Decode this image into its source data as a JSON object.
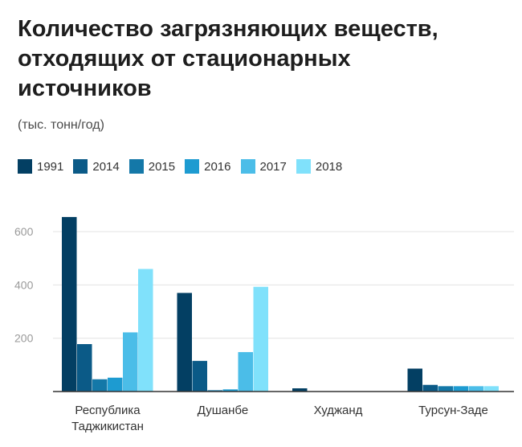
{
  "chart_data": {
    "type": "bar",
    "title_lines": [
      "Количество загрязняющих веществ,",
      "отходящих от стационарных",
      "источников"
    ],
    "subtitle": "(тыс. тонн/год)",
    "categories": [
      [
        "Республика",
        "Таджикистан"
      ],
      [
        "Душанбе"
      ],
      [
        "Худжанд"
      ],
      [
        "Турсун-Заде"
      ]
    ],
    "series": [
      {
        "name": "1991",
        "color": "#033f63",
        "values": [
          655,
          370,
          12,
          86
        ]
      },
      {
        "name": "2014",
        "color": "#0b5a87",
        "values": [
          178,
          115,
          0,
          25
        ]
      },
      {
        "name": "2015",
        "color": "#1478a8",
        "values": [
          46,
          5,
          0,
          20
        ]
      },
      {
        "name": "2016",
        "color": "#1d9bd1",
        "values": [
          52,
          8,
          0,
          20
        ]
      },
      {
        "name": "2017",
        "color": "#4bbde8",
        "values": [
          222,
          148,
          0,
          20
        ]
      },
      {
        "name": "2018",
        "color": "#80e1fb",
        "values": [
          460,
          393,
          0,
          20
        ]
      }
    ],
    "yticks": [
      200,
      400,
      600
    ],
    "ylim": [
      0,
      700
    ],
    "legend_position": "top-left",
    "grid": true
  }
}
